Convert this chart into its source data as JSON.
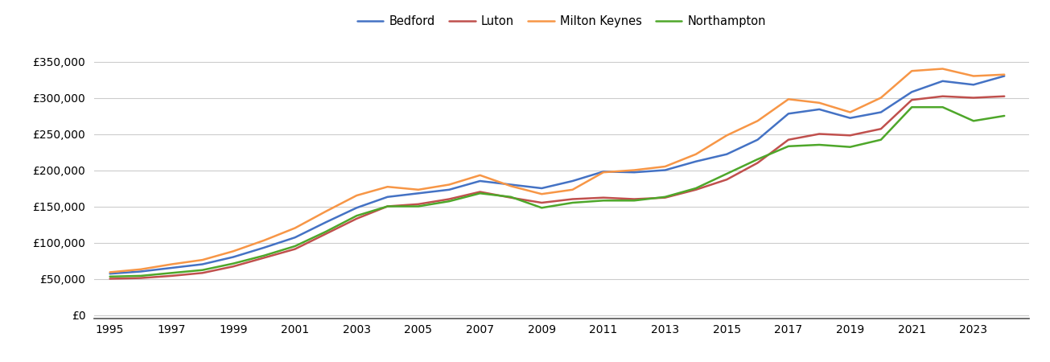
{
  "years": [
    1995,
    1996,
    1997,
    1998,
    1999,
    2000,
    2001,
    2002,
    2003,
    2004,
    2005,
    2006,
    2007,
    2008,
    2009,
    2010,
    2011,
    2012,
    2013,
    2014,
    2015,
    2016,
    2017,
    2018,
    2019,
    2020,
    2021,
    2022,
    2023,
    2024
  ],
  "bedford": [
    57000,
    60000,
    65000,
    70000,
    80000,
    93000,
    107000,
    128000,
    148000,
    163000,
    168000,
    173000,
    185000,
    180000,
    175000,
    185000,
    198000,
    197000,
    200000,
    212000,
    222000,
    242000,
    278000,
    284000,
    272000,
    280000,
    308000,
    323000,
    318000,
    330000
  ],
  "luton": [
    50000,
    51000,
    54000,
    58000,
    67000,
    79000,
    91000,
    112000,
    133000,
    150000,
    153000,
    160000,
    170000,
    162000,
    155000,
    160000,
    162000,
    160000,
    162000,
    173000,
    187000,
    210000,
    242000,
    250000,
    248000,
    257000,
    297000,
    302000,
    300000,
    302000
  ],
  "milton_keynes": [
    59000,
    63000,
    70000,
    76000,
    88000,
    103000,
    120000,
    143000,
    165000,
    177000,
    173000,
    180000,
    193000,
    178000,
    167000,
    173000,
    197000,
    200000,
    205000,
    222000,
    248000,
    268000,
    298000,
    293000,
    280000,
    300000,
    337000,
    340000,
    330000,
    332000
  ],
  "northampton": [
    53000,
    54000,
    58000,
    62000,
    71000,
    82000,
    95000,
    115000,
    137000,
    150000,
    150000,
    157000,
    168000,
    163000,
    148000,
    155000,
    158000,
    158000,
    163000,
    175000,
    195000,
    215000,
    233000,
    235000,
    232000,
    242000,
    287000,
    287000,
    268000,
    275000
  ],
  "line_colors": {
    "bedford": "#4472C4",
    "luton": "#C0504D",
    "milton_keynes": "#F79646",
    "northampton": "#4EA72A"
  },
  "yticks": [
    0,
    50000,
    100000,
    150000,
    200000,
    250000,
    300000,
    350000
  ],
  "ylim": [
    -5000,
    375000
  ],
  "xlim": [
    1994.5,
    2024.8
  ],
  "xticks": [
    1995,
    1997,
    1999,
    2001,
    2003,
    2005,
    2007,
    2009,
    2011,
    2013,
    2015,
    2017,
    2019,
    2021,
    2023
  ],
  "background_color": "#ffffff",
  "grid_color": "#cccccc",
  "line_width": 1.8,
  "tick_fontsize": 10,
  "legend_fontsize": 10.5
}
